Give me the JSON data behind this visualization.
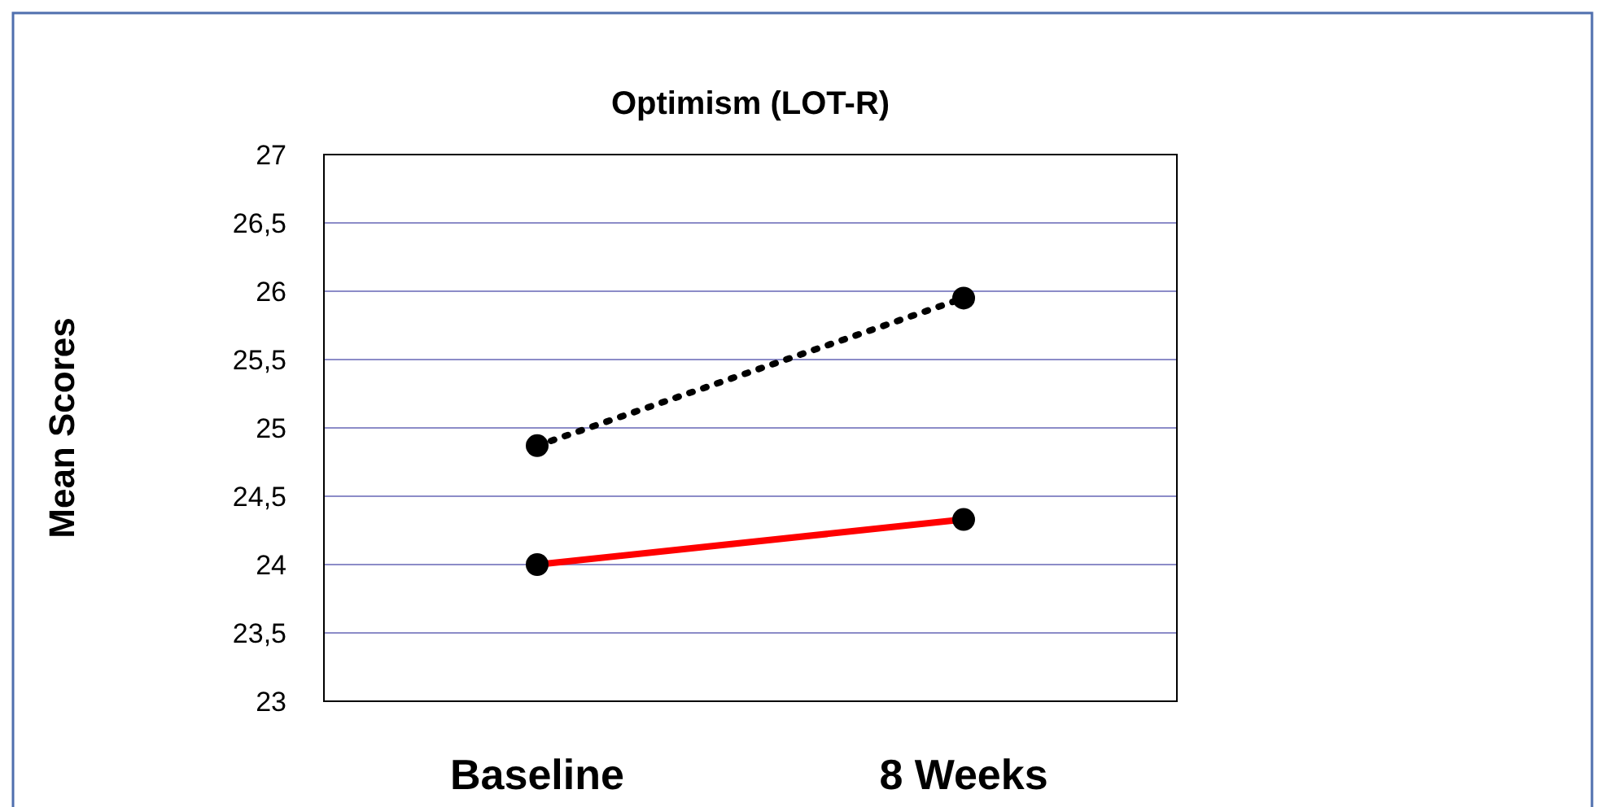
{
  "chart_data": {
    "type": "line",
    "title": "Optimism (LOT-R)",
    "ylabel": "Mean Scores",
    "categories": [
      "Baseline",
      "8 Weeks"
    ],
    "series": [
      {
        "color": "#000000",
        "values": [
          24.87,
          25.95
        ],
        "line_style": "dotted"
      },
      {
        "color": "#ff0000",
        "values": [
          24.0,
          24.33
        ],
        "line_style": "solid"
      }
    ],
    "ylim": [
      23,
      27
    ],
    "yticks": [
      23,
      {
        "value": 23.5,
        "label": "23,5"
      },
      24,
      {
        "value": 24.5,
        "label": "24,5"
      },
      25,
      {
        "value": 25.5,
        "label": "25,5"
      },
      26,
      {
        "value": 26.5,
        "label": "26,5"
      },
      27
    ],
    "grid": "y",
    "marker": "circle"
  }
}
